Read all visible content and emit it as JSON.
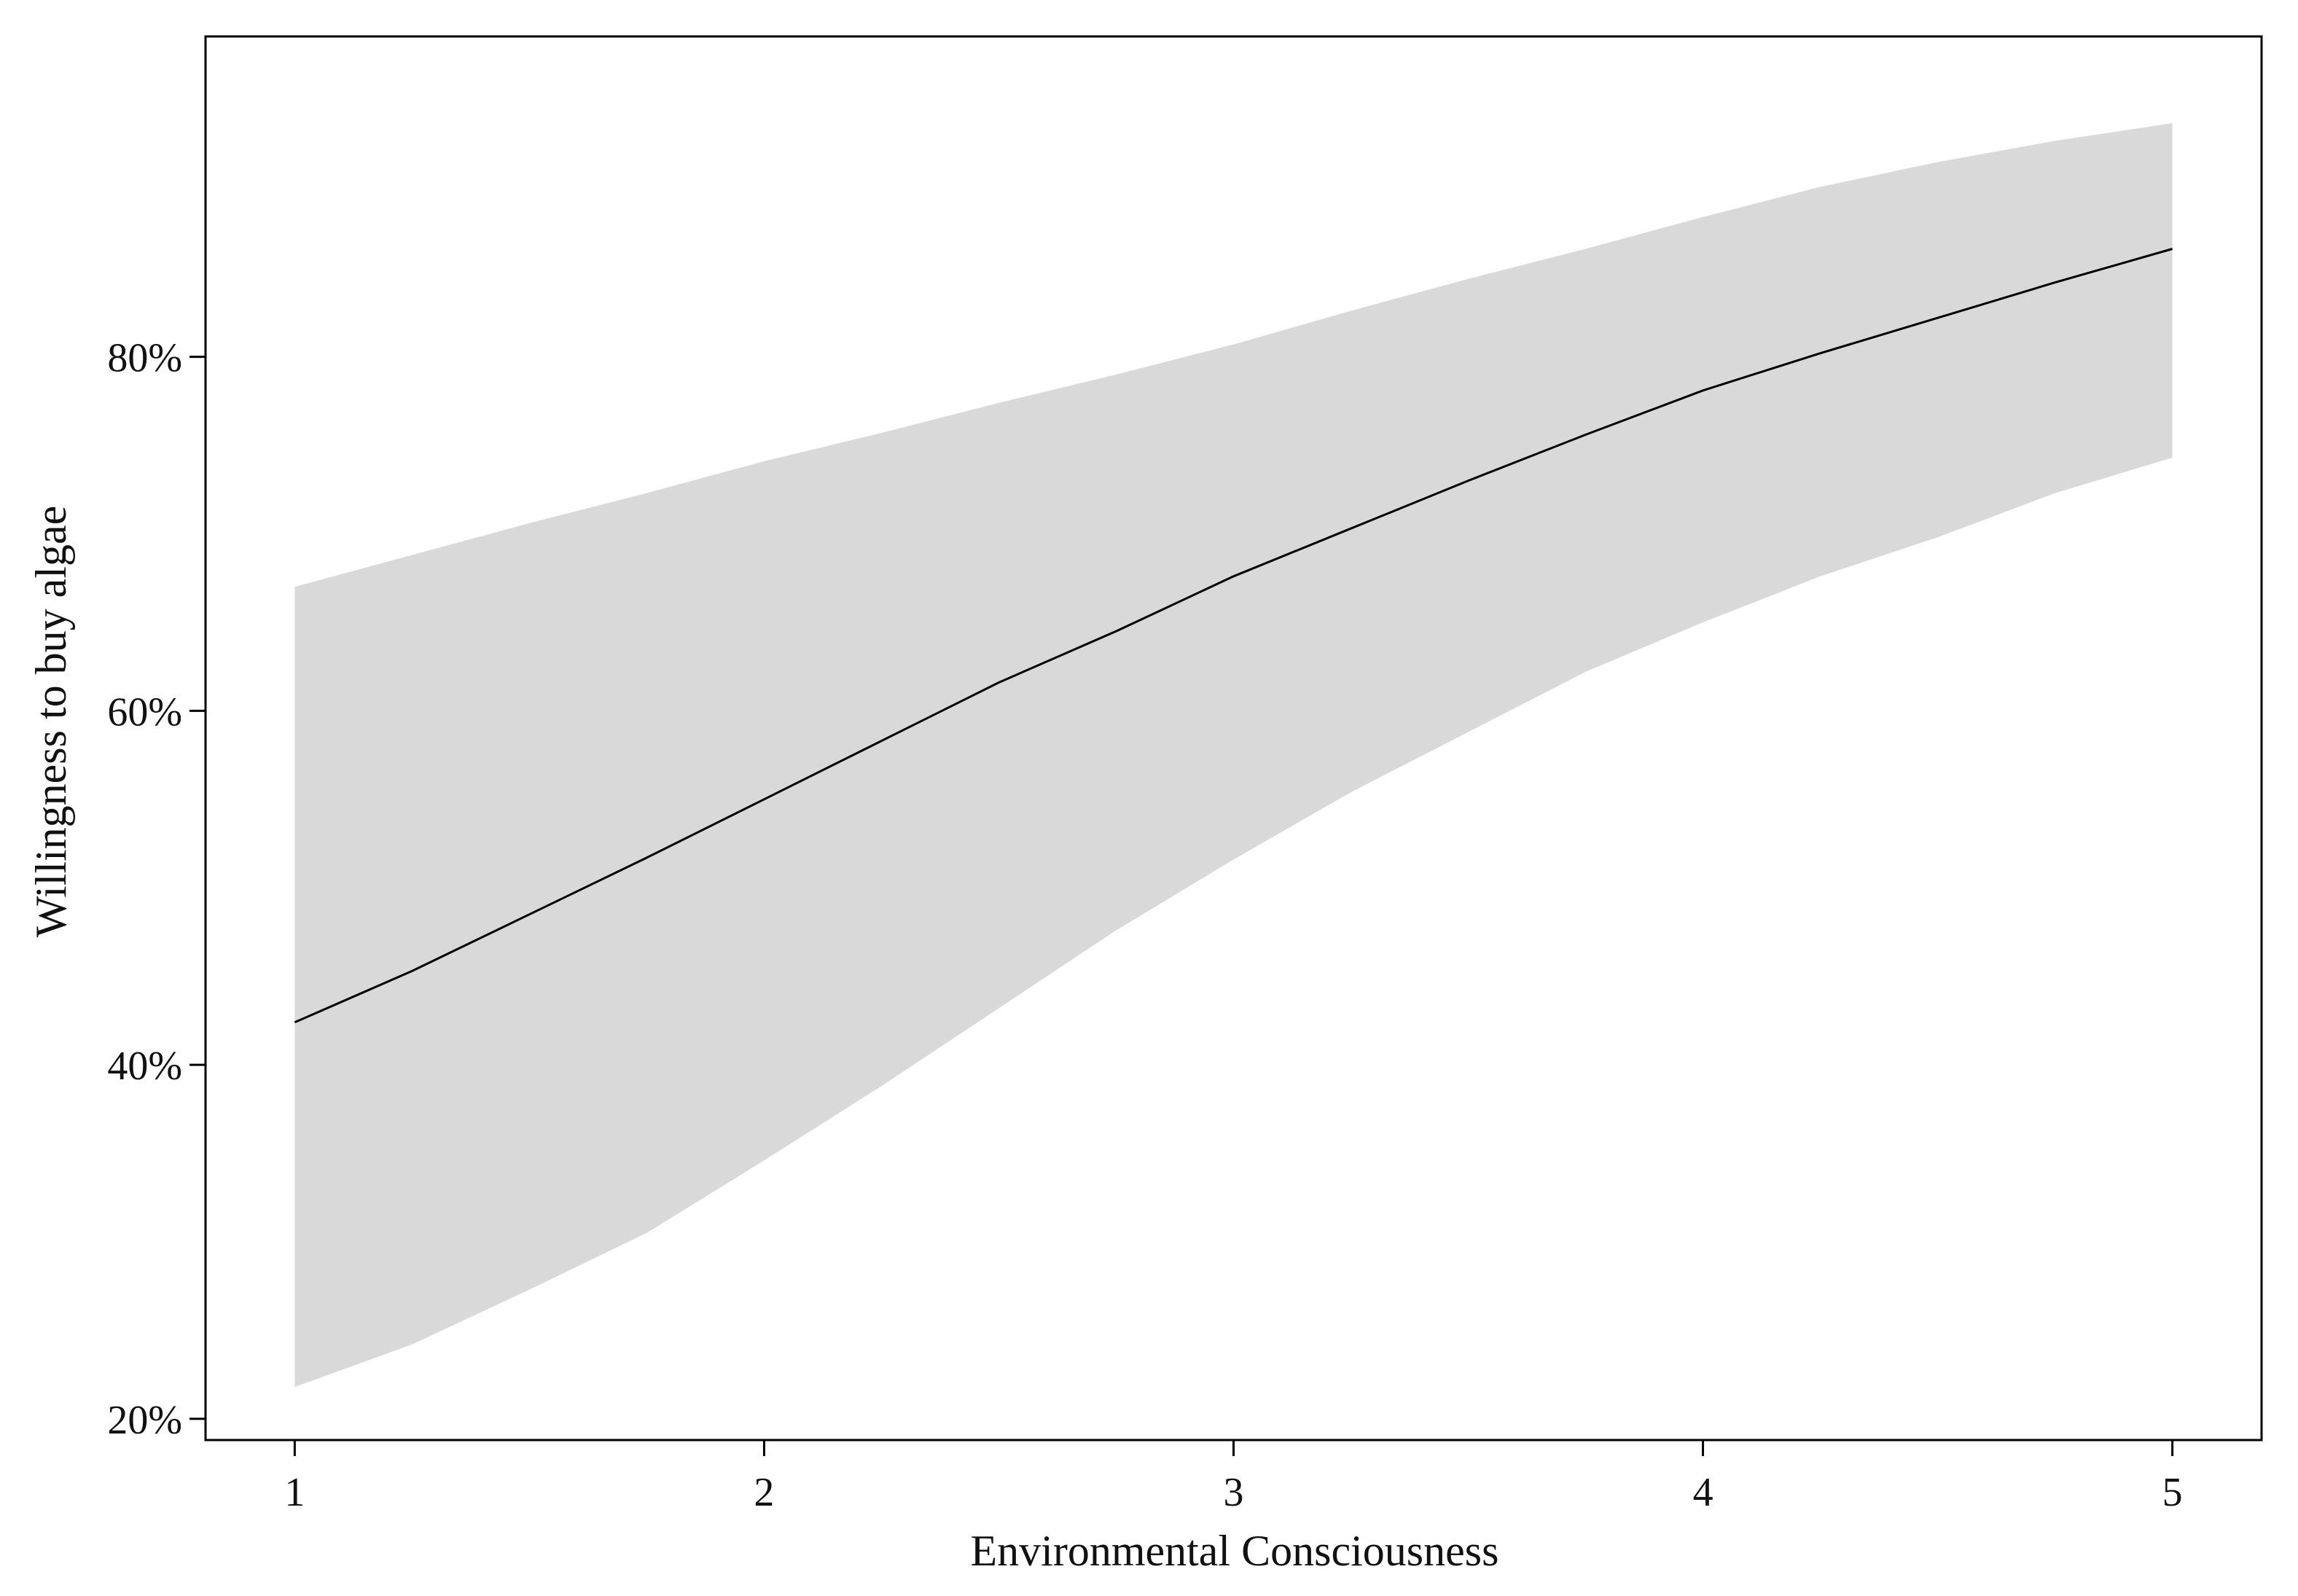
{
  "chart_data": {
    "type": "line",
    "xlabel": "Environmental Consciousness",
    "ylabel": "Willingness to buy algae",
    "xlim": [
      0.81,
      5.19
    ],
    "ylim": [
      18.8,
      98.1
    ],
    "x_ticks": [
      {
        "value": 1,
        "label": "1"
      },
      {
        "value": 2,
        "label": "2"
      },
      {
        "value": 3,
        "label": "3"
      },
      {
        "value": 4,
        "label": "4"
      },
      {
        "value": 5,
        "label": "5"
      }
    ],
    "y_ticks": [
      {
        "value": 20,
        "label": "20%"
      },
      {
        "value": 40,
        "label": "40%"
      },
      {
        "value": 60,
        "label": "60%"
      },
      {
        "value": 80,
        "label": "80%"
      }
    ],
    "grid": false,
    "legend": "none",
    "series": [
      {
        "x": [
          1,
          1.25,
          1.5,
          1.75,
          2,
          2.25,
          2.5,
          2.75,
          3,
          3.25,
          3.5,
          3.75,
          4,
          4.25,
          4.5,
          4.75,
          5
        ],
        "values": [
          42.4,
          45.3,
          48.5,
          51.7,
          55.0,
          58.3,
          61.6,
          64.5,
          67.6,
          70.3,
          73.0,
          75.6,
          78.1,
          80.2,
          82.2,
          84.2,
          86.1
        ],
        "lower": [
          21.8,
          24.2,
          27.3,
          30.5,
          34.6,
          38.8,
          43.2,
          47.6,
          51.6,
          55.4,
          58.8,
          62.2,
          65.0,
          67.6,
          69.8,
          72.3,
          74.3
        ],
        "upper": [
          67.0,
          68.8,
          70.6,
          72.3,
          74.1,
          75.7,
          77.4,
          79.0,
          80.7,
          82.6,
          84.4,
          86.1,
          87.9,
          89.6,
          91.0,
          92.2,
          93.2
        ]
      }
    ],
    "colors": {
      "band": "#d9d9d9",
      "line": "#000000",
      "frame": "#000000"
    }
  }
}
